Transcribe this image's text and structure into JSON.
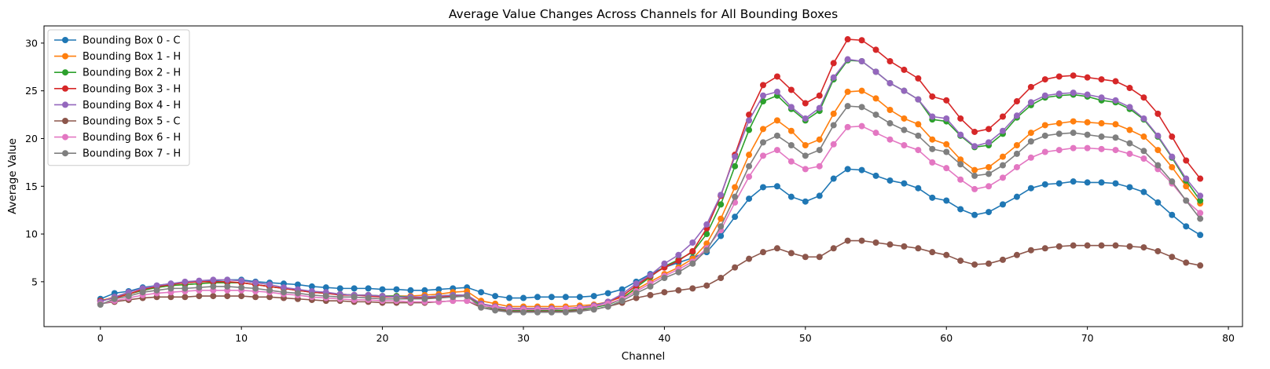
{
  "chart_data": {
    "type": "line",
    "title": "Average Value Changes Across Channels for All Bounding Boxes",
    "xlabel": "Channel",
    "ylabel": "Average Value",
    "xlim": [
      -4,
      81
    ],
    "ylim": [
      0.3,
      31.8
    ],
    "xticks": [
      0,
      10,
      20,
      30,
      40,
      50,
      60,
      70,
      80
    ],
    "yticks": [
      5,
      10,
      15,
      20,
      25,
      30
    ],
    "grid": false,
    "legend_position": "upper-left",
    "series": [
      {
        "name": "Bounding Box 0 - C",
        "color": "#1f77b4",
        "values": [
          3.2,
          3.8,
          4.0,
          4.4,
          4.6,
          4.8,
          4.9,
          5.0,
          5.1,
          5.2,
          5.2,
          5.0,
          4.9,
          4.8,
          4.7,
          4.5,
          4.4,
          4.3,
          4.3,
          4.3,
          4.2,
          4.2,
          4.1,
          4.1,
          4.2,
          4.3,
          4.4,
          3.9,
          3.5,
          3.3,
          3.3,
          3.4,
          3.4,
          3.4,
          3.4,
          3.5,
          3.8,
          4.2,
          5.0,
          5.8,
          6.5,
          7.0,
          7.5,
          8.1,
          9.8,
          11.8,
          13.7,
          14.9,
          15.0,
          13.9,
          13.4,
          14.0,
          15.8,
          16.8,
          16.7,
          16.1,
          15.6,
          15.3,
          14.8,
          13.8,
          13.5,
          12.6,
          12.0,
          12.3,
          13.1,
          13.9,
          14.8,
          15.2,
          15.3,
          15.5,
          15.4,
          15.4,
          15.3,
          14.9,
          14.4,
          13.3,
          12.0,
          10.8,
          9.9
        ]
      },
      {
        "name": "Bounding Box 1 - H",
        "color": "#ff7f0e",
        "values": [
          3.0,
          3.4,
          3.7,
          4.1,
          4.4,
          4.6,
          4.7,
          4.8,
          4.9,
          4.9,
          4.9,
          4.7,
          4.5,
          4.3,
          4.1,
          3.9,
          3.8,
          3.7,
          3.6,
          3.6,
          3.5,
          3.5,
          3.5,
          3.6,
          3.7,
          3.9,
          4.0,
          3.0,
          2.7,
          2.4,
          2.4,
          2.4,
          2.4,
          2.4,
          2.5,
          2.6,
          2.9,
          3.4,
          4.2,
          5.0,
          5.8,
          6.5,
          7.4,
          9.0,
          11.6,
          14.9,
          18.3,
          21.0,
          21.9,
          20.8,
          19.3,
          19.9,
          22.6,
          24.9,
          25.0,
          24.2,
          23.0,
          22.1,
          21.5,
          19.9,
          19.4,
          17.8,
          16.7,
          17.0,
          18.1,
          19.3,
          20.6,
          21.4,
          21.6,
          21.8,
          21.7,
          21.6,
          21.5,
          20.9,
          20.2,
          18.8,
          17.0,
          15.0,
          13.2
        ]
      },
      {
        "name": "Bounding Box 2 - H",
        "color": "#2ca02c",
        "values": [
          3.0,
          3.3,
          3.7,
          4.1,
          4.4,
          4.6,
          4.7,
          4.8,
          4.9,
          4.9,
          4.9,
          4.7,
          4.5,
          4.3,
          4.1,
          3.9,
          3.8,
          3.7,
          3.6,
          3.6,
          3.5,
          3.5,
          3.4,
          3.4,
          3.5,
          3.6,
          3.6,
          2.5,
          2.2,
          2.0,
          2.0,
          2.0,
          2.0,
          2.0,
          2.1,
          2.3,
          2.6,
          3.2,
          4.4,
          5.5,
          6.6,
          7.3,
          8.1,
          10.0,
          13.1,
          17.1,
          20.9,
          23.9,
          24.5,
          23.1,
          21.9,
          22.9,
          26.2,
          28.2,
          28.1,
          27.0,
          25.8,
          25.0,
          24.1,
          22.0,
          21.8,
          20.3,
          19.1,
          19.3,
          20.5,
          22.2,
          23.5,
          24.3,
          24.5,
          24.6,
          24.4,
          24.0,
          23.8,
          23.1,
          22.0,
          20.2,
          18.0,
          15.6,
          13.5
        ]
      },
      {
        "name": "Bounding Box 3 - H",
        "color": "#d62728",
        "values": [
          3.0,
          3.3,
          3.7,
          4.2,
          4.5,
          4.7,
          4.9,
          5.0,
          5.0,
          5.0,
          4.9,
          4.7,
          4.5,
          4.3,
          4.1,
          3.9,
          3.8,
          3.6,
          3.6,
          3.5,
          3.4,
          3.4,
          3.3,
          3.3,
          3.4,
          3.5,
          3.5,
          2.7,
          2.4,
          2.2,
          2.2,
          2.2,
          2.2,
          2.2,
          2.3,
          2.5,
          2.9,
          3.5,
          4.6,
          5.6,
          6.5,
          7.2,
          8.2,
          10.6,
          14.0,
          18.3,
          22.5,
          25.6,
          26.5,
          25.1,
          23.7,
          24.5,
          27.9,
          30.4,
          30.3,
          29.3,
          28.1,
          27.2,
          26.3,
          24.4,
          24.0,
          22.1,
          20.7,
          21.0,
          22.3,
          23.9,
          25.4,
          26.2,
          26.5,
          26.6,
          26.4,
          26.2,
          26.0,
          25.3,
          24.3,
          22.6,
          20.2,
          17.7,
          15.8
        ]
      },
      {
        "name": "Bounding Box 4 - H",
        "color": "#9467bd",
        "values": [
          2.9,
          3.4,
          3.9,
          4.3,
          4.6,
          4.8,
          5.0,
          5.1,
          5.2,
          5.2,
          5.1,
          4.9,
          4.7,
          4.4,
          4.2,
          4.0,
          3.9,
          3.7,
          3.6,
          3.6,
          3.5,
          3.4,
          3.4,
          3.4,
          3.5,
          3.6,
          3.6,
          2.7,
          2.4,
          2.2,
          2.2,
          2.2,
          2.2,
          2.2,
          2.3,
          2.5,
          2.9,
          3.7,
          4.8,
          5.7,
          6.9,
          7.8,
          9.1,
          11.0,
          14.1,
          18.1,
          21.9,
          24.5,
          24.9,
          23.3,
          22.1,
          23.2,
          26.4,
          28.3,
          28.1,
          27.0,
          25.8,
          25.0,
          24.1,
          22.3,
          22.1,
          20.4,
          19.2,
          19.6,
          20.8,
          22.4,
          23.8,
          24.5,
          24.7,
          24.8,
          24.6,
          24.3,
          24.0,
          23.3,
          22.1,
          20.3,
          18.1,
          15.8,
          14.0
        ]
      },
      {
        "name": "Bounding Box 5 - C",
        "color": "#8c564b",
        "values": [
          2.7,
          2.9,
          3.1,
          3.3,
          3.4,
          3.4,
          3.4,
          3.5,
          3.5,
          3.5,
          3.5,
          3.4,
          3.4,
          3.3,
          3.2,
          3.1,
          3.0,
          3.0,
          2.9,
          2.9,
          2.8,
          2.8,
          2.8,
          2.8,
          2.9,
          3.0,
          3.0,
          2.3,
          2.1,
          1.9,
          1.9,
          1.9,
          1.9,
          1.9,
          2.0,
          2.1,
          2.4,
          2.8,
          3.3,
          3.6,
          3.9,
          4.1,
          4.3,
          4.6,
          5.4,
          6.5,
          7.4,
          8.1,
          8.5,
          8.0,
          7.6,
          7.6,
          8.5,
          9.3,
          9.3,
          9.1,
          8.9,
          8.7,
          8.5,
          8.1,
          7.8,
          7.2,
          6.8,
          6.9,
          7.3,
          7.8,
          8.3,
          8.5,
          8.7,
          8.8,
          8.8,
          8.8,
          8.8,
          8.7,
          8.6,
          8.2,
          7.6,
          7.0,
          6.7
        ]
      },
      {
        "name": "Bounding Box 6 - H",
        "color": "#e377c2",
        "values": [
          2.7,
          3.0,
          3.3,
          3.6,
          3.8,
          3.9,
          4.0,
          4.1,
          4.1,
          4.1,
          4.1,
          4.0,
          3.9,
          3.7,
          3.6,
          3.4,
          3.3,
          3.2,
          3.1,
          3.1,
          3.0,
          3.0,
          2.9,
          2.9,
          2.9,
          3.0,
          3.0,
          2.5,
          2.3,
          2.1,
          2.1,
          2.1,
          2.1,
          2.2,
          2.2,
          2.4,
          2.7,
          3.2,
          4.0,
          4.8,
          5.6,
          6.3,
          7.1,
          8.5,
          10.4,
          13.3,
          16.0,
          18.2,
          18.8,
          17.6,
          16.8,
          17.1,
          19.4,
          21.2,
          21.3,
          20.6,
          19.9,
          19.3,
          18.8,
          17.5,
          16.9,
          15.7,
          14.7,
          15.0,
          15.9,
          17.0,
          18.0,
          18.6,
          18.8,
          19.0,
          19.0,
          18.9,
          18.8,
          18.4,
          17.9,
          16.8,
          15.3,
          13.5,
          12.2
        ]
      },
      {
        "name": "Bounding Box 7 - H",
        "color": "#7f7f7f",
        "values": [
          2.6,
          3.2,
          3.5,
          3.9,
          4.1,
          4.3,
          4.3,
          4.4,
          4.5,
          4.5,
          4.4,
          4.3,
          4.1,
          3.9,
          3.8,
          3.6,
          3.5,
          3.4,
          3.4,
          3.3,
          3.2,
          3.2,
          3.2,
          3.2,
          3.3,
          3.4,
          3.5,
          2.3,
          2.0,
          1.8,
          1.8,
          1.8,
          1.8,
          1.8,
          1.9,
          2.1,
          2.4,
          3.0,
          3.8,
          4.5,
          5.4,
          6.0,
          6.9,
          8.3,
          10.8,
          13.9,
          17.1,
          19.6,
          20.3,
          19.3,
          18.2,
          18.8,
          21.4,
          23.4,
          23.3,
          22.5,
          21.6,
          20.9,
          20.3,
          18.9,
          18.6,
          17.3,
          16.1,
          16.3,
          17.2,
          18.4,
          19.7,
          20.3,
          20.5,
          20.6,
          20.4,
          20.2,
          20.1,
          19.5,
          18.7,
          17.2,
          15.5,
          13.5,
          11.6
        ]
      }
    ]
  }
}
